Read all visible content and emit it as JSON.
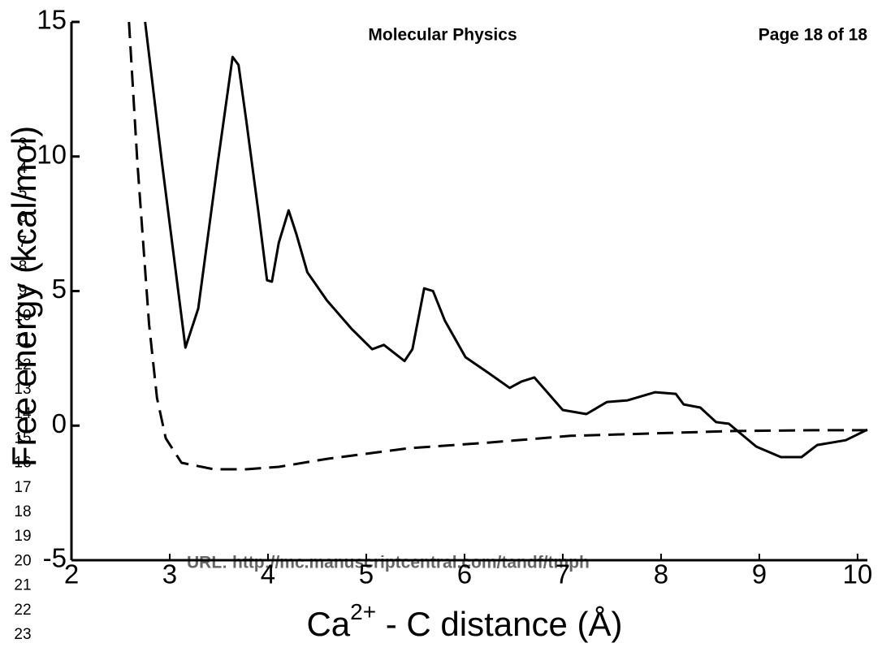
{
  "page_header": {
    "journal": "Molecular Physics",
    "page": "Page 18 of 18"
  },
  "line_numbers": [
    "3",
    "4",
    "5",
    "6",
    "7",
    "8",
    "9",
    "10",
    "11",
    "12",
    "13",
    "14",
    "15",
    "16",
    "17",
    "18",
    "19",
    "20",
    "21",
    "22",
    "23"
  ],
  "footer_url": "URL: http://mc.manuscriptcentral.com/tandf/tmph",
  "chart_data": {
    "type": "line",
    "xlabel": {
      "base": "Ca",
      "sup": "2+",
      "rest": " - C distance (Å)"
    },
    "ylabel": "Free energy (kcal/mol)",
    "xlim": [
      2,
      10.1
    ],
    "xticks": [
      2,
      3,
      4,
      5,
      6,
      7,
      8,
      9,
      10
    ],
    "ylim": [
      -5,
      15
    ],
    "yticks": [
      -5,
      0,
      5,
      10,
      15
    ],
    "series": [
      {
        "color": "#000000",
        "dashed": false,
        "x": [
          2.75,
          2.92,
          3.16,
          3.29,
          3.49,
          3.64,
          3.7,
          3.78,
          3.9,
          3.99,
          4.04,
          4.11,
          4.21,
          4.29,
          4.4,
          4.6,
          4.85,
          5.06,
          5.18,
          5.39,
          5.47,
          5.59,
          5.68,
          5.8,
          6.01,
          6.25,
          6.46,
          6.58,
          6.71,
          7.0,
          7.24,
          7.45,
          7.66,
          7.94,
          8.15,
          8.23,
          8.4,
          8.56,
          8.69,
          8.97,
          9.22,
          9.43,
          9.59,
          9.88,
          10.1
        ],
        "values": [
          15,
          9.8,
          2.9,
          4.35,
          9.8,
          13.7,
          13.4,
          11.3,
          8.0,
          5.4,
          5.35,
          6.8,
          8.0,
          7.1,
          5.7,
          4.65,
          3.6,
          2.84,
          3.0,
          2.4,
          2.84,
          5.1,
          5.0,
          3.9,
          2.54,
          1.94,
          1.4,
          1.64,
          1.79,
          0.58,
          0.43,
          0.88,
          0.94,
          1.24,
          1.18,
          0.79,
          0.67,
          0.13,
          0.07,
          -0.78,
          -1.17,
          -1.17,
          -0.72,
          -0.54,
          -0.15
        ]
      },
      {
        "color": "#000000",
        "dashed": true,
        "x": [
          2.585,
          2.67,
          2.79,
          2.87,
          2.96,
          3.12,
          3.45,
          3.78,
          4.11,
          4.61,
          5.43,
          6.25,
          7.08,
          7.9,
          8.73,
          9.55,
          10.1
        ],
        "values": [
          15,
          9.8,
          3.75,
          1.03,
          -0.47,
          -1.38,
          -1.62,
          -1.62,
          -1.53,
          -1.23,
          -0.84,
          -0.63,
          -0.38,
          -0.29,
          -0.2,
          -0.17,
          -0.17
        ]
      }
    ]
  }
}
